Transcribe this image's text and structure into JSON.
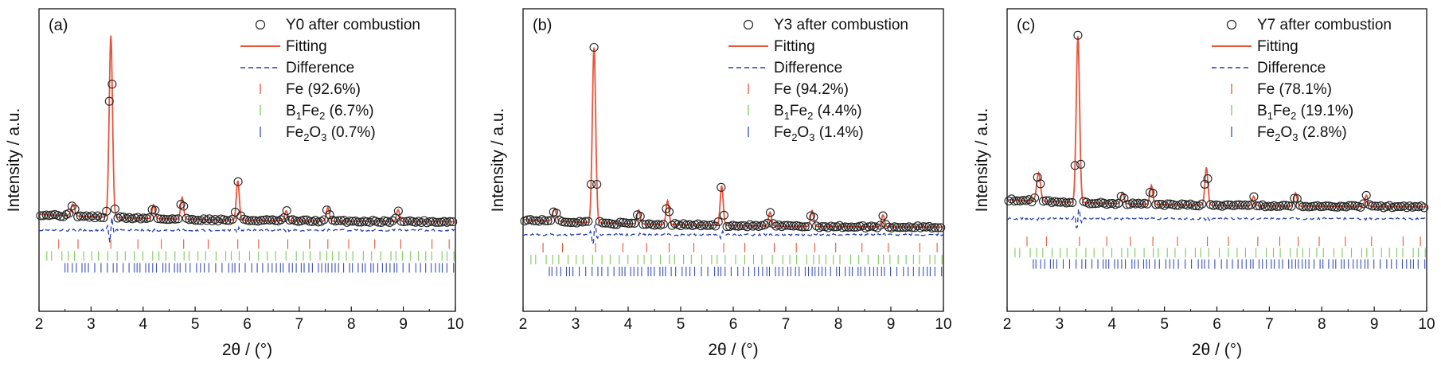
{
  "figure_title": "",
  "colors": {
    "fitting": "#e8553c",
    "difference": "#2a3fb0",
    "observed": "#222222",
    "fe_ticks": "#e8553c",
    "bfe_ticks": "#7cc85a",
    "fe2o3_ticks": "#3a4fb8"
  },
  "chart_data": [
    {
      "type": "line",
      "panel_label": "(a)",
      "xlabel": "2θ / (°)",
      "ylabel": "Intensity / a.u.",
      "xlim": [
        2,
        10
      ],
      "xticks": [
        2,
        3,
        4,
        5,
        6,
        7,
        8,
        9,
        10
      ],
      "ylim": [
        -0.45,
        1.08
      ],
      "legend_position": "top-right",
      "legend": [
        {
          "kind": "circle",
          "label": "Y0 after combustion"
        },
        {
          "kind": "line",
          "label": "Fitting"
        },
        {
          "kind": "dash",
          "label": "Difference"
        },
        {
          "kind": "tick",
          "phase": "Fe",
          "label": "Fe (92.6%)"
        },
        {
          "kind": "tick",
          "phase": "BFe",
          "label": "B1Fe2 (6.7%)",
          "parts": [
            "B",
            "1",
            "Fe",
            "2",
            " (6.7%)"
          ]
        },
        {
          "kind": "tick",
          "phase": "Fe2O3",
          "label": "Fe2O3 (0.7%)",
          "parts": [
            "Fe",
            "2",
            "O",
            "3",
            " (0.7%)"
          ]
        }
      ],
      "baseline": 0.0,
      "peaks": [
        [
          2.65,
          0.06,
          0.05
        ],
        [
          3.38,
          0.92,
          0.045
        ],
        [
          4.2,
          0.07,
          0.04
        ],
        [
          4.75,
          0.11,
          0.04
        ],
        [
          5.82,
          0.2,
          0.04
        ],
        [
          6.75,
          0.05,
          0.04
        ],
        [
          7.55,
          0.07,
          0.04
        ],
        [
          8.9,
          0.06,
          0.04
        ]
      ],
      "difference_offset": -0.04,
      "tick_rows": {
        "Fe": -0.11,
        "BFe": -0.17,
        "Fe2O3": -0.23
      }
    },
    {
      "type": "line",
      "panel_label": "(b)",
      "xlabel": "2θ / (°)",
      "ylabel": "Intensity / a.u.",
      "xlim": [
        2,
        10
      ],
      "xticks": [
        2,
        3,
        4,
        5,
        6,
        7,
        8,
        9,
        10
      ],
      "ylim": [
        -0.42,
        1.1
      ],
      "legend_position": "top-right",
      "legend": [
        {
          "kind": "circle",
          "label": "Y3 after combustion"
        },
        {
          "kind": "line",
          "label": "Fitting"
        },
        {
          "kind": "dash",
          "label": "Difference"
        },
        {
          "kind": "tick",
          "phase": "Fe",
          "label": "Fe (94.2%)"
        },
        {
          "kind": "tick",
          "phase": "BFe",
          "label": "B1Fe2 (4.4%)",
          "parts": [
            "B",
            "1",
            "Fe",
            "2",
            " (4.4%)"
          ]
        },
        {
          "kind": "tick",
          "phase": "Fe2O3",
          "label": "Fe2O3 (1.4%)",
          "parts": [
            "Fe",
            "2",
            "O",
            "3",
            " (1.4%)"
          ]
        }
      ],
      "baseline": 0.0,
      "peaks": [
        [
          2.6,
          0.06,
          0.05
        ],
        [
          3.35,
          0.88,
          0.045
        ],
        [
          4.2,
          0.07,
          0.04
        ],
        [
          4.75,
          0.12,
          0.04
        ],
        [
          5.78,
          0.2,
          0.04
        ],
        [
          6.7,
          0.07,
          0.04
        ],
        [
          7.5,
          0.08,
          0.04
        ],
        [
          8.85,
          0.06,
          0.04
        ]
      ],
      "difference_offset": -0.035,
      "tick_rows": {
        "Fe": -0.1,
        "BFe": -0.16,
        "Fe2O3": -0.22
      }
    },
    {
      "type": "line",
      "panel_label": "(c)",
      "xlabel": "2θ / (°)",
      "ylabel": "Intensity / a.u.",
      "xlim": [
        2,
        10
      ],
      "xticks": [
        2,
        3,
        4,
        5,
        6,
        7,
        8,
        9,
        10
      ],
      "ylim": [
        -0.55,
        1.05
      ],
      "legend_position": "top-right",
      "legend": [
        {
          "kind": "circle",
          "label": "Y7 after combustion"
        },
        {
          "kind": "line",
          "label": "Fitting"
        },
        {
          "kind": "dash",
          "label": "Difference"
        },
        {
          "kind": "tick",
          "phase": "Fe",
          "label": "Fe (78.1%)"
        },
        {
          "kind": "tick",
          "phase": "BFe",
          "label": "B1Fe2 (19.1%)",
          "parts": [
            "B",
            "1",
            "Fe",
            "2",
            " (19.1%)"
          ]
        },
        {
          "kind": "tick",
          "phase": "Fe2O3",
          "label": "Fe2O3 (2.8%)",
          "parts": [
            "Fe",
            "2",
            "O",
            "3",
            " (2.8%)"
          ]
        }
      ],
      "baseline": 0.0,
      "peaks": [
        [
          2.6,
          0.15,
          0.05
        ],
        [
          3.35,
          0.88,
          0.045
        ],
        [
          4.2,
          0.06,
          0.04
        ],
        [
          4.75,
          0.1,
          0.04
        ],
        [
          5.8,
          0.2,
          0.04
        ],
        [
          6.7,
          0.05,
          0.04
        ],
        [
          7.5,
          0.07,
          0.04
        ],
        [
          8.85,
          0.06,
          0.04
        ]
      ],
      "difference_offset": -0.06,
      "tick_rows": {
        "Fe": -0.18,
        "BFe": -0.24,
        "Fe2O3": -0.3
      }
    }
  ]
}
